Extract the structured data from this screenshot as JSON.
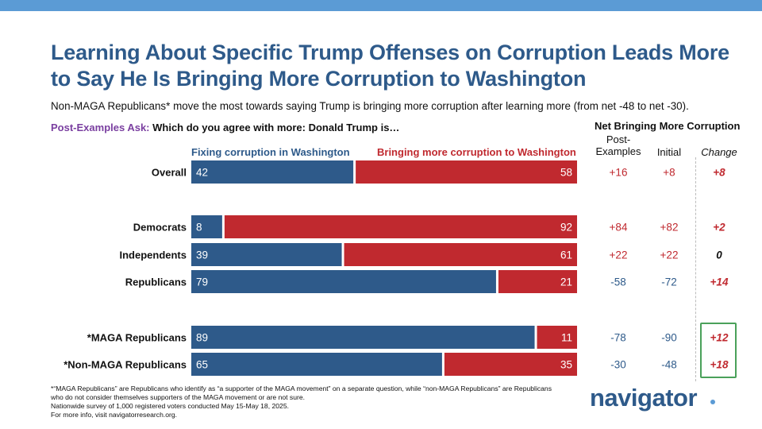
{
  "title": "Learning About Specific Trump Offenses on Corruption Leads More to Say He Is Bringing More Corruption to Washington",
  "subtitle": "Non-MAGA Republicans* move the most towards saying Trump is bringing more corruption after learning more (from net -48 to net -30).",
  "question": {
    "prefix": "Post-Examples Ask:",
    "text": " Which do you agree with more: Donald Trump is…"
  },
  "net_header": "Net Bringing More Corruption",
  "column_headers": {
    "post": "Post-\nExamples",
    "initial": "Initial",
    "change": "Change"
  },
  "colors": {
    "fix": "#2e5a8a",
    "bring": "#c0292f",
    "net_negative": "#2e5a8a",
    "net_positive": "#c0292f",
    "highlight": "#4aa15a",
    "accent_bar": "#5b9bd5"
  },
  "chart_data": {
    "type": "bar",
    "orientation": "horizontal",
    "stacked": true,
    "title": "Learning About Specific Trump Offenses on Corruption Leads More to Say He Is Bringing More Corruption to Washington",
    "categories": [
      "Overall",
      "Democrats",
      "Independents",
      "Republicans",
      "*MAGA Republicans",
      "*Non-MAGA Republicans"
    ],
    "series": [
      {
        "name": "Fixing corruption in Washington",
        "values": [
          42,
          8,
          39,
          79,
          89,
          65
        ]
      },
      {
        "name": "Bringing more corruption to Washington",
        "values": [
          58,
          92,
          61,
          21,
          11,
          35
        ]
      }
    ],
    "xlim": [
      0,
      100
    ],
    "legend": "top",
    "net_post_examples": [
      "+16",
      "+84",
      "+22",
      "-58",
      "-78",
      "-30"
    ],
    "net_initial": [
      "+8",
      "+82",
      "+22",
      "-72",
      "-90",
      "-48"
    ],
    "change": [
      "+8",
      "+2",
      "0",
      "+14",
      "+12",
      "+18"
    ],
    "highlighted_categories": [
      "*MAGA Republicans",
      "*Non-MAGA Republicans"
    ]
  },
  "footnote": {
    "line1": "*“MAGA Republicans” are Republicans who identify as “a supporter of the MAGA movement” on a separate question, while “non-MAGA Republicans” are Republicans who do not consider themselves supporters of the MAGA movement or are not sure.",
    "line2": "Nationwide survey of 1,000 registered voters conducted May 15-May 18, 2025.",
    "line3": "For more info, visit navigatorresearch.org."
  },
  "logo": "navigator"
}
